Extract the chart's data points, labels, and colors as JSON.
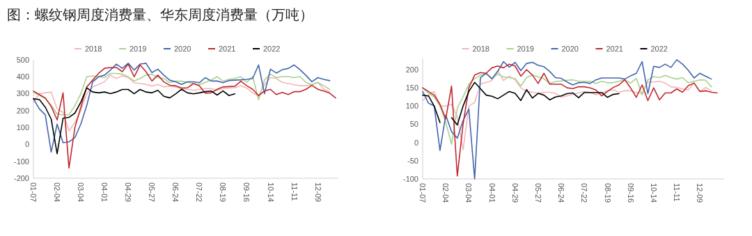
{
  "chart_data": [
    {
      "type": "line",
      "title": "图：螺纹钢周度消费量、华东周度消费量（万吨）",
      "categories": [
        "01-07",
        null,
        null,
        null,
        "02-04",
        null,
        null,
        null,
        "03-04",
        null,
        null,
        null,
        "04-01",
        null,
        null,
        null,
        "04-29",
        null,
        null,
        null,
        "05-27",
        null,
        null,
        null,
        "06-24",
        null,
        null,
        null,
        "07-22",
        null,
        null,
        null,
        "08-19",
        null,
        null,
        null,
        "09-16",
        null,
        null,
        null,
        "10-14",
        null,
        null,
        null,
        "11-11",
        null,
        null,
        null,
        "12-09",
        null,
        null,
        null
      ],
      "ylim": [
        -200,
        500
      ],
      "yticks": [
        -200,
        -100,
        0,
        100,
        200,
        300,
        400,
        500
      ],
      "grid": false,
      "legend": "top",
      "marker": "none",
      "line_style": "solid",
      "series": [
        {
          "name": "2018",
          "color": "#f4b6b8",
          "values": [
            250,
            300,
            305,
            310,
            210,
            190,
            80,
            130,
            200,
            300,
            340,
            355,
            370,
            410,
            390,
            405,
            395,
            365,
            360,
            355,
            345,
            355,
            340,
            345,
            340,
            330,
            325,
            320,
            325,
            330,
            330,
            320,
            330,
            333,
            335,
            347,
            333,
            305,
            285,
            353,
            395,
            390,
            367,
            360,
            353,
            347,
            347,
            353,
            367,
            326,
            312,
            null
          ]
        },
        {
          "name": "2019",
          "color": "#a9d18e",
          "values": [
            310,
            290,
            270,
            230,
            180,
            175,
            175,
            230,
            300,
            400,
            405,
            400,
            395,
            420,
            420,
            415,
            400,
            375,
            390,
            410,
            415,
            395,
            390,
            365,
            374,
            374,
            367,
            360,
            353,
            367,
            381,
            401,
            374,
            385,
            390,
            401,
            367,
            401,
            264,
            381,
            415,
            395,
            401,
            401,
            395,
            401,
            367,
            353,
            367,
            346,
            326,
            null
          ]
        },
        {
          "name": "2020",
          "color": "#4264ad",
          "values": [
            270,
            210,
            175,
            -45,
            120,
            10,
            15,
            40,
            120,
            230,
            370,
            400,
            410,
            440,
            475,
            450,
            480,
            440,
            475,
            480,
            425,
            445,
            410,
            380,
            370,
            355,
            370,
            370,
            365,
            395,
            375,
            375,
            365,
            378,
            380,
            382,
            385,
            390,
            470,
            300,
            445,
            422,
            442,
            449,
            470,
            442,
            408,
            371,
            395,
            385,
            377,
            null
          ]
        },
        {
          "name": "2021",
          "color": "#c0282f",
          "values": [
            315,
            295,
            275,
            225,
            145,
            305,
            -140,
            100,
            220,
            340,
            380,
            420,
            450,
            455,
            455,
            430,
            475,
            400,
            470,
            430,
            375,
            410,
            370,
            350,
            347,
            333,
            335,
            360,
            347,
            303,
            305,
            326,
            340,
            342,
            344,
            374,
            347,
            326,
            289,
            316,
            326,
            295,
            308,
            295,
            312,
            312,
            326,
            349,
            326,
            316,
            303,
            275
          ]
        },
        {
          "name": "2022",
          "color": "#000000",
          "values": [
            270,
            265,
            220,
            150,
            -55,
            155,
            160,
            185,
            250,
            335,
            310,
            305,
            310,
            300,
            310,
            325,
            325,
            300,
            325,
            310,
            305,
            320,
            285,
            275,
            299,
            326,
            305,
            299,
            305,
            312,
            316,
            292,
            316,
            289,
            299,
            null,
            null,
            null,
            null,
            null,
            null,
            null,
            null,
            null,
            null,
            null,
            null,
            null,
            null,
            null,
            null,
            null
          ]
        }
      ]
    },
    {
      "type": "line",
      "categories": [
        "01-07",
        null,
        null,
        null,
        "02-04",
        null,
        null,
        null,
        "03-04",
        null,
        null,
        null,
        "04-01",
        null,
        null,
        null,
        "04-29",
        null,
        null,
        null,
        "05-27",
        null,
        null,
        null,
        "06-24",
        null,
        null,
        null,
        "07-22",
        null,
        null,
        null,
        "08-19",
        null,
        null,
        null,
        "09-16",
        null,
        null,
        null,
        "10-14",
        null,
        null,
        null,
        "11-11",
        null,
        null,
        null,
        "12-09",
        null,
        null,
        null
      ],
      "ylim": [
        -100,
        230
      ],
      "yticks": [
        -100,
        -50,
        0,
        50,
        100,
        150,
        200
      ],
      "grid": false,
      "legend": "top",
      "marker": "none",
      "line_style": "solid",
      "series": [
        {
          "name": "2018",
          "color": "#f4b6b8",
          "values": [
            115,
            130,
            140,
            100,
            100,
            105,
            70,
            -20,
            100,
            110,
            160,
            165,
            170,
            198,
            170,
            182,
            172,
            150,
            140,
            138,
            135,
            138,
            138,
            135,
            124,
            128,
            132,
            136,
            140,
            137,
            131,
            136,
            142,
            144,
            138,
            142,
            142,
            137,
            134,
            166,
            166,
            168,
            163,
            153,
            151,
            147,
            144,
            164,
            140,
            151,
            142,
            null
          ]
        },
        {
          "name": "2019",
          "color": "#a9d18e",
          "values": [
            150,
            135,
            125,
            100,
            55,
            -5,
            95,
            125,
            160,
            175,
            185,
            188,
            175,
            188,
            180,
            178,
            175,
            155,
            178,
            185,
            180,
            175,
            162,
            167,
            169,
            171,
            172,
            168,
            168,
            168,
            162,
            168,
            164,
            164,
            168,
            172,
            163,
            176,
            131,
            172,
            181,
            178,
            184,
            178,
            174,
            178,
            164,
            168,
            172,
            171,
            153,
            null
          ]
        },
        {
          "name": "2020",
          "color": "#4264ad",
          "values": [
            140,
            108,
            100,
            -22,
            75,
            30,
            12,
            60,
            92,
            -100,
            178,
            190,
            175,
            195,
            222,
            207,
            220,
            197,
            217,
            220,
            212,
            208,
            195,
            178,
            176,
            166,
            158,
            164,
            165,
            162,
            172,
            177,
            177,
            177,
            177,
            174,
            183,
            190,
            222,
            134,
            209,
            206,
            215,
            206,
            227,
            215,
            198,
            177,
            190,
            182,
            174,
            null
          ]
        },
        {
          "name": "2021",
          "color": "#c0282f",
          "values": [
            150,
            140,
            130,
            105,
            65,
            155,
            -92,
            50,
            150,
            185,
            192,
            190,
            205,
            210,
            205,
            215,
            210,
            182,
            200,
            185,
            162,
            190,
            160,
            160,
            160,
            150,
            148,
            153,
            153,
            150,
            144,
            128,
            140,
            151,
            158,
            172,
            150,
            124,
            158,
            115,
            150,
            117,
            136,
            136,
            147,
            138,
            156,
            163,
            140,
            142,
            138,
            136
          ]
        },
        {
          "name": "2022",
          "color": "#000000",
          "values": [
            130,
            128,
            100,
            55,
            null,
            68,
            48,
            100,
            140,
            165,
            148,
            130,
            127,
            120,
            130,
            140,
            135,
            115,
            145,
            122,
            135,
            130,
            117,
            125,
            128,
            134,
            136,
            123,
            137,
            137,
            137,
            137,
            124,
            132,
            134,
            null,
            null,
            null,
            null,
            null,
            null,
            null,
            null,
            null,
            null,
            null,
            null,
            null,
            null,
            null,
            null,
            null
          ]
        }
      ]
    }
  ]
}
